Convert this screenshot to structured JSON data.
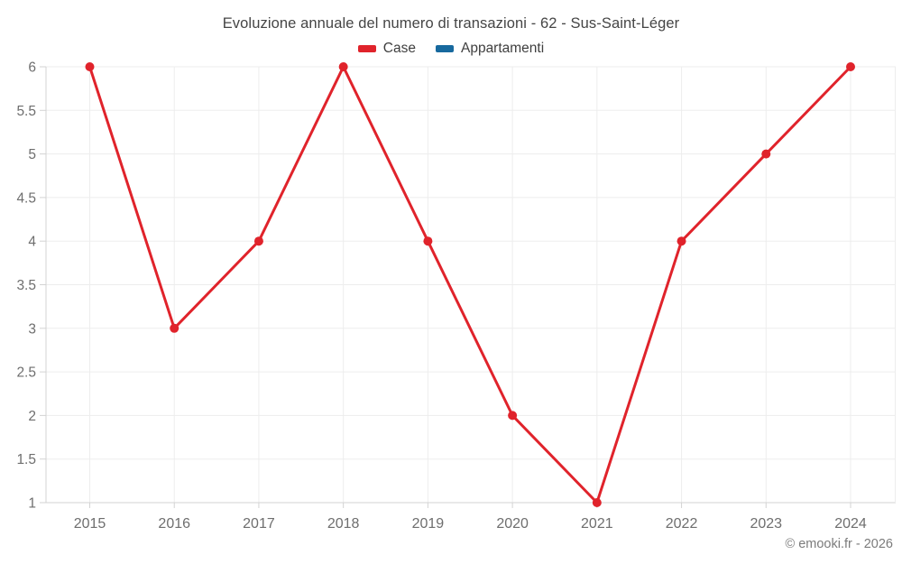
{
  "header": {
    "title": "Evoluzione annuale del numero di transazioni - 62 - Sus-Saint-Léger"
  },
  "footer": {
    "credit": "© emooki.fr - 2026"
  },
  "chart_data": {
    "type": "line",
    "title": "Evoluzione annuale del numero di transazioni - 62 - Sus-Saint-Léger",
    "categories": [
      "2015",
      "2016",
      "2017",
      "2018",
      "2019",
      "2020",
      "2021",
      "2022",
      "2023",
      "2024"
    ],
    "series": [
      {
        "name": "Case",
        "color": "#e0232b",
        "values": [
          6,
          3,
          4,
          6,
          4,
          2,
          1,
          4,
          5,
          6
        ]
      },
      {
        "name": "Appartamenti",
        "color": "#17699e",
        "values": []
      }
    ],
    "xlabel": "",
    "ylabel": "",
    "ylim": [
      1,
      6
    ],
    "ytick_step": 0.5,
    "grid": true,
    "legend_position": "top",
    "marker": "circle"
  },
  "colors": {
    "background": "#ffffff",
    "grid": "#ededed",
    "axis": "#d3d3d3",
    "tick_label": "#6e6e6e",
    "title": "#454545",
    "footer": "#7b7b7b"
  }
}
